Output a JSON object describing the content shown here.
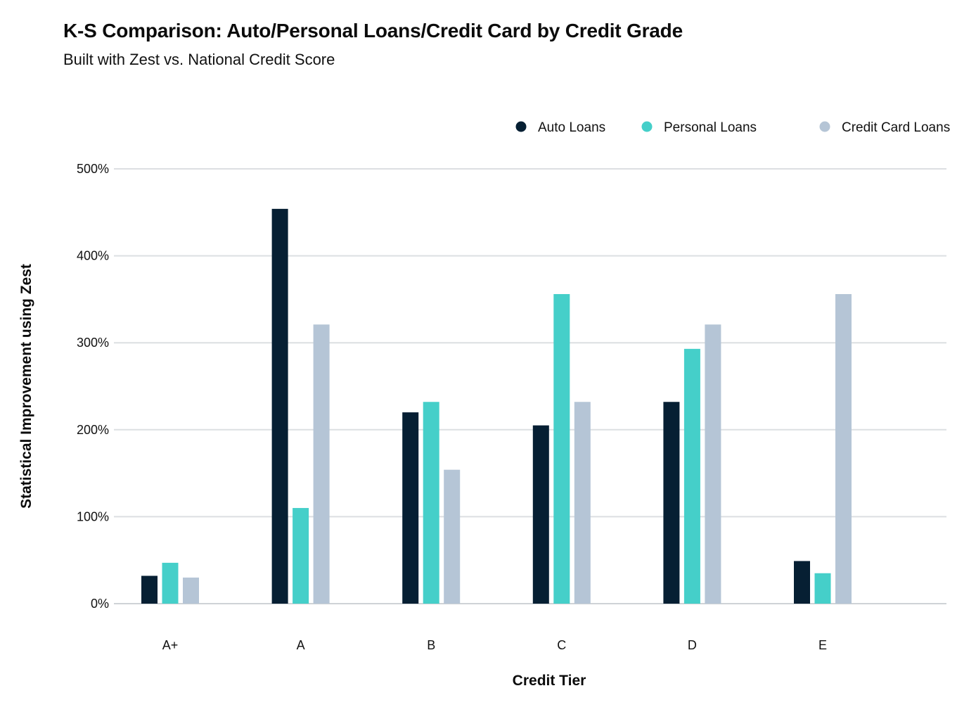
{
  "chart_data": {
    "type": "bar",
    "title": "K-S Comparison: Auto/Personal Loans/Credit Card by Credit Grade",
    "subtitle": "Built with Zest vs. National Credit Score",
    "xlabel": "Credit Tier",
    "ylabel": "Statistical Improvement using Zest",
    "categories": [
      "A+",
      "A",
      "B",
      "C",
      "D",
      "E"
    ],
    "ylim": [
      0,
      500
    ],
    "yticks": [
      "0%",
      "100%",
      "200%",
      "300%",
      "400%",
      "500%"
    ],
    "grid": true,
    "legend_position": "top-right",
    "series": [
      {
        "name": "Auto Loans",
        "color": "#061f33",
        "values": [
          32,
          454,
          220,
          205,
          232,
          49
        ]
      },
      {
        "name": "Personal Loans",
        "color": "#45cfc9",
        "values": [
          47,
          110,
          232,
          356,
          293,
          35
        ]
      },
      {
        "name": "Credit Card Loans",
        "color": "#b5c5d6",
        "values": [
          30,
          321,
          154,
          232,
          321,
          356
        ]
      }
    ]
  }
}
